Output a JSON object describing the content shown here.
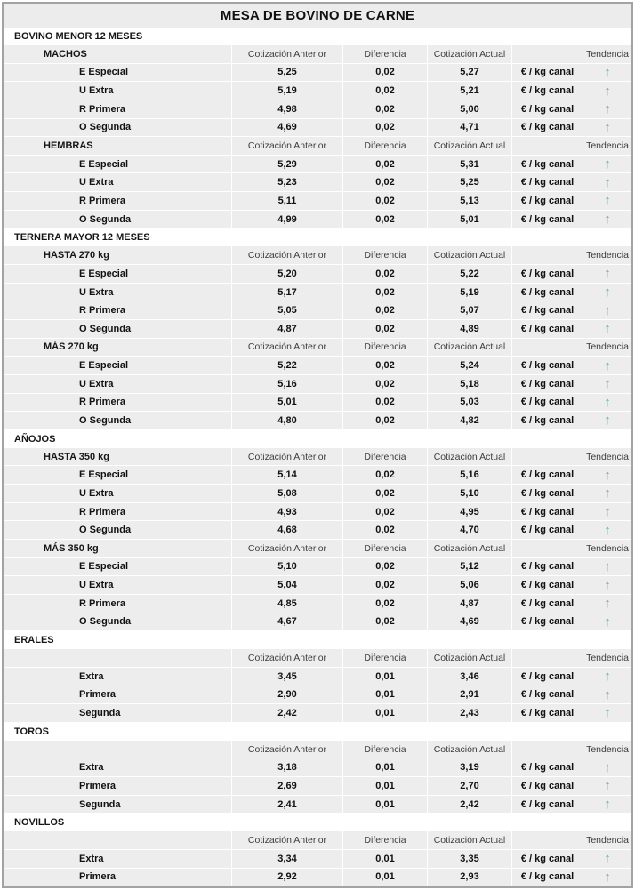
{
  "title": "MESA DE BOVINO DE CARNE",
  "unit": "€ / kg canal",
  "trend": {
    "up_glyph": "↑"
  },
  "colors": {
    "trend_up_green": "#4eb573",
    "row_background": "#ededed",
    "title_background": "#ececec",
    "column_header_text": "#3d3d3d",
    "frame_border": "#a3a3a3"
  },
  "columns": {
    "prev": "Cotización Anterior",
    "diff": "Diferencia",
    "curr": "Cotización Actual",
    "trend": "Tendencia"
  },
  "sections": [
    {
      "name": "BOVINO MENOR 12 MESES",
      "groups": [
        {
          "name": "MACHOS",
          "rows": [
            {
              "label": "E Especial",
              "prev": "5,25",
              "diff": "0,02",
              "curr": "5,27",
              "trend": "up"
            },
            {
              "label": "U Extra",
              "prev": "5,19",
              "diff": "0,02",
              "curr": "5,21",
              "trend": "up"
            },
            {
              "label": "R Primera",
              "prev": "4,98",
              "diff": "0,02",
              "curr": "5,00",
              "trend": "up"
            },
            {
              "label": "O Segunda",
              "prev": "4,69",
              "diff": "0,02",
              "curr": "4,71",
              "trend": "up"
            }
          ]
        },
        {
          "name": "HEMBRAS",
          "rows": [
            {
              "label": "E Especial",
              "prev": "5,29",
              "diff": "0,02",
              "curr": "5,31",
              "trend": "up"
            },
            {
              "label": "U Extra",
              "prev": "5,23",
              "diff": "0,02",
              "curr": "5,25",
              "trend": "up"
            },
            {
              "label": "R Primera",
              "prev": "5,11",
              "diff": "0,02",
              "curr": "5,13",
              "trend": "up"
            },
            {
              "label": "O Segunda",
              "prev": "4,99",
              "diff": "0,02",
              "curr": "5,01",
              "trend": "up"
            }
          ]
        }
      ]
    },
    {
      "name": "TERNERA MAYOR 12 MESES",
      "groups": [
        {
          "name": "HASTA 270 kg",
          "rows": [
            {
              "label": "E Especial",
              "prev": "5,20",
              "diff": "0,02",
              "curr": "5,22",
              "trend": "up"
            },
            {
              "label": "U Extra",
              "prev": "5,17",
              "diff": "0,02",
              "curr": "5,19",
              "trend": "up"
            },
            {
              "label": "R Primera",
              "prev": "5,05",
              "diff": "0,02",
              "curr": "5,07",
              "trend": "up"
            },
            {
              "label": "O Segunda",
              "prev": "4,87",
              "diff": "0,02",
              "curr": "4,89",
              "trend": "up"
            }
          ]
        },
        {
          "name": "MÁS 270 kg",
          "rows": [
            {
              "label": "E Especial",
              "prev": "5,22",
              "diff": "0,02",
              "curr": "5,24",
              "trend": "up"
            },
            {
              "label": "U Extra",
              "prev": "5,16",
              "diff": "0,02",
              "curr": "5,18",
              "trend": "up"
            },
            {
              "label": "R Primera",
              "prev": "5,01",
              "diff": "0,02",
              "curr": "5,03",
              "trend": "up"
            },
            {
              "label": "O Segunda",
              "prev": "4,80",
              "diff": "0,02",
              "curr": "4,82",
              "trend": "up"
            }
          ]
        }
      ]
    },
    {
      "name": "AÑOJOS",
      "groups": [
        {
          "name": "HASTA 350 kg",
          "rows": [
            {
              "label": "E Especial",
              "prev": "5,14",
              "diff": "0,02",
              "curr": "5,16",
              "trend": "up"
            },
            {
              "label": "U Extra",
              "prev": "5,08",
              "diff": "0,02",
              "curr": "5,10",
              "trend": "up"
            },
            {
              "label": "R Primera",
              "prev": "4,93",
              "diff": "0,02",
              "curr": "4,95",
              "trend": "up"
            },
            {
              "label": "O Segunda",
              "prev": "4,68",
              "diff": "0,02",
              "curr": "4,70",
              "trend": "up"
            }
          ]
        },
        {
          "name": "MÁS 350 kg",
          "rows": [
            {
              "label": "E Especial",
              "prev": "5,10",
              "diff": "0,02",
              "curr": "5,12",
              "trend": "up"
            },
            {
              "label": "U Extra",
              "prev": "5,04",
              "diff": "0,02",
              "curr": "5,06",
              "trend": "up"
            },
            {
              "label": "R Primera",
              "prev": "4,85",
              "diff": "0,02",
              "curr": "4,87",
              "trend": "up"
            },
            {
              "label": "O Segunda",
              "prev": "4,67",
              "diff": "0,02",
              "curr": "4,69",
              "trend": "up"
            }
          ]
        }
      ]
    },
    {
      "name": "ERALES",
      "groups": [
        {
          "name": "",
          "rows": [
            {
              "label": "Extra",
              "prev": "3,45",
              "diff": "0,01",
              "curr": "3,46",
              "trend": "up"
            },
            {
              "label": "Primera",
              "prev": "2,90",
              "diff": "0,01",
              "curr": "2,91",
              "trend": "up"
            },
            {
              "label": "Segunda",
              "prev": "2,42",
              "diff": "0,01",
              "curr": "2,43",
              "trend": "up"
            }
          ]
        }
      ]
    },
    {
      "name": "TOROS",
      "groups": [
        {
          "name": "",
          "rows": [
            {
              "label": "Extra",
              "prev": "3,18",
              "diff": "0,01",
              "curr": "3,19",
              "trend": "up"
            },
            {
              "label": "Primera",
              "prev": "2,69",
              "diff": "0,01",
              "curr": "2,70",
              "trend": "up"
            },
            {
              "label": "Segunda",
              "prev": "2,41",
              "diff": "0,01",
              "curr": "2,42",
              "trend": "up"
            }
          ]
        }
      ]
    },
    {
      "name": "NOVILLOS",
      "groups": [
        {
          "name": "",
          "rows": [
            {
              "label": "Extra",
              "prev": "3,34",
              "diff": "0,01",
              "curr": "3,35",
              "trend": "up"
            },
            {
              "label": "Primera",
              "prev": "2,92",
              "diff": "0,01",
              "curr": "2,93",
              "trend": "up"
            }
          ]
        }
      ]
    }
  ]
}
